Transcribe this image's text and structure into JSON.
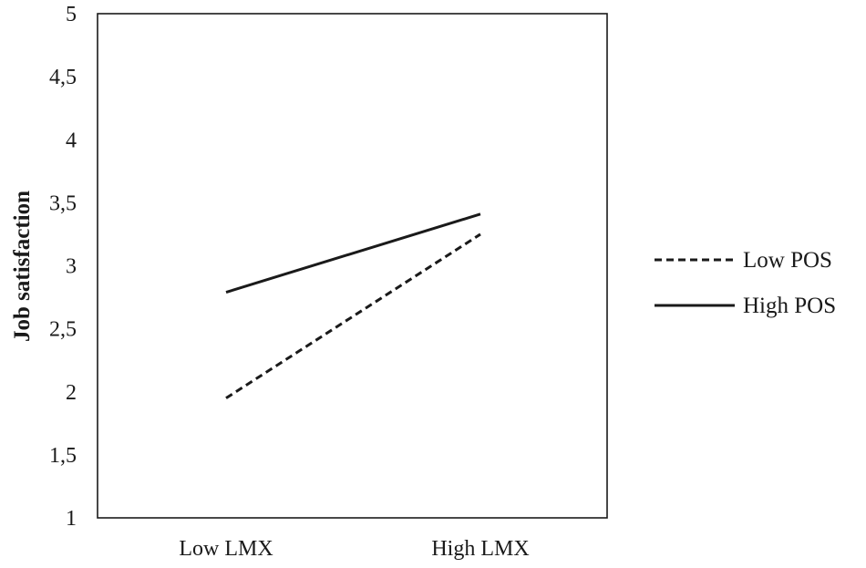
{
  "chart_data": {
    "type": "line",
    "title": "",
    "xlabel": "",
    "ylabel": "Job satisfaction",
    "categories": [
      "Low LMX",
      "High LMX"
    ],
    "ylim": [
      1,
      5
    ],
    "yticks": [
      "1",
      "1,5",
      "2",
      "2,5",
      "3",
      "3,5",
      "4",
      "4,5",
      "5"
    ],
    "ytick_values": [
      1,
      1.5,
      2,
      2.5,
      3,
      3.5,
      4,
      4.5,
      5
    ],
    "grid": false,
    "legend_position": "right",
    "series": [
      {
        "name": "Low POS",
        "values": [
          1.95,
          3.25
        ],
        "style": "dashed",
        "color": "#1a1a1a"
      },
      {
        "name": "High POS",
        "values": [
          2.79,
          3.41
        ],
        "style": "solid",
        "color": "#1a1a1a"
      }
    ]
  }
}
